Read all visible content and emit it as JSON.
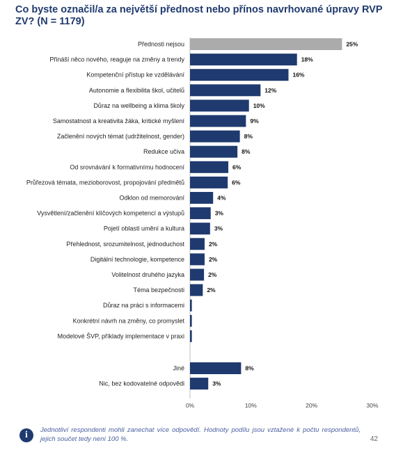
{
  "title": "Co byste označil/a za největší přednost nebo přínos navrhované úpravy RVP ZV? (N = 1179)",
  "note": "Jednotliví respondenti mohli zanechat více odpovědí. Hodnoty podílu jsou vztažené k počtu respondentů, jejich součet tedy není 100 %.",
  "page_number": "42",
  "colors": {
    "highlight": "#ababab",
    "bar": "#1f3a6e",
    "title": "#1f3a6e"
  },
  "chart_data": {
    "type": "bar",
    "orientation": "horizontal",
    "xlim": [
      0,
      30
    ],
    "ticks": [
      "0%",
      "10%",
      "20%",
      "30%"
    ],
    "grid": false,
    "categories": [
      "Přednosti nejsou",
      "Přináší něco nového, reaguje na změny a trendy",
      "Kompetenční přístup ke vzdělávání",
      "Autonomie a flexibilita škol, učitelů",
      "Důraz na wellbeing a klima školy",
      "Samostatnost a kreativita žáka, kritické myšlení",
      "Začlenění nových témat (udržitelnost, gender)",
      "Redukce učiva",
      "Od srovnávání k formativnímu hodnocení",
      "Průřezová témata, mezioborovost, propojování předmětů",
      "Odklon od memorování",
      "Vysvětlení/začlenění klíčových kompetencí a výstupů",
      "Pojetí oblasti umění a kultura",
      "Přehlednost, srozumitelnost, jednoduchost",
      "Digitální technologie, kompetence",
      "Volitelnost druhého jazyka",
      "Téma bezpečnosti",
      "Důraz na práci s informacemi",
      "Konkrétní návrh na změny, co promyslet",
      "Modelové ŠVP, příklady implementace v praxi",
      "Jiné",
      "Nic, bez kodovatelné odpovědi"
    ],
    "values": [
      25.0,
      17.6,
      16.2,
      11.6,
      9.7,
      9.2,
      8.2,
      7.8,
      6.3,
      6.2,
      3.8,
      3.4,
      3.3,
      2.4,
      2.4,
      2.3,
      2.1,
      0.3,
      0.3,
      0.3,
      8.4,
      3.0
    ],
    "value_labels": [
      "25%",
      "18%",
      "16%",
      "12%",
      "10%",
      "9%",
      "8%",
      "8%",
      "6%",
      "6%",
      "4%",
      "3%",
      "3%",
      "2%",
      "2%",
      "2%",
      "2%",
      "",
      "",
      "",
      "8%",
      "3%"
    ],
    "highlighted": [
      0
    ]
  }
}
